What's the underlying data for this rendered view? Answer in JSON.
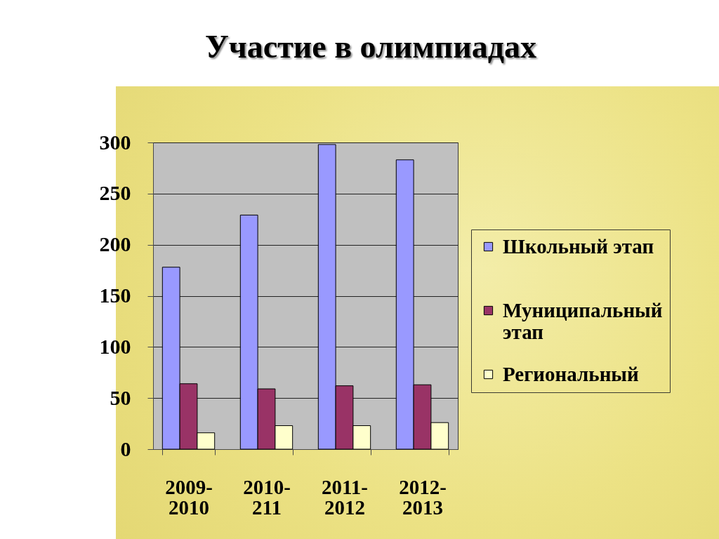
{
  "chart_data": {
    "type": "bar",
    "title": "Участие в олимпиадах",
    "categories": [
      "2009-2010",
      "2010-211",
      "2011-2012",
      "2012-2013"
    ],
    "series": [
      {
        "name": "Школьный этап",
        "color": "#9999ff",
        "values": [
          178,
          229,
          298,
          283
        ]
      },
      {
        "name": "Муниципальный этап",
        "color": "#993366",
        "values": [
          64,
          59,
          62,
          63
        ]
      },
      {
        "name": "Региональный",
        "color": "#ffffcc",
        "values": [
          16,
          23,
          23,
          26
        ]
      }
    ],
    "ylim": [
      0,
      300
    ],
    "yticks": [
      0,
      50,
      100,
      150,
      200,
      250,
      300
    ],
    "grid": "y",
    "legend": "right"
  }
}
